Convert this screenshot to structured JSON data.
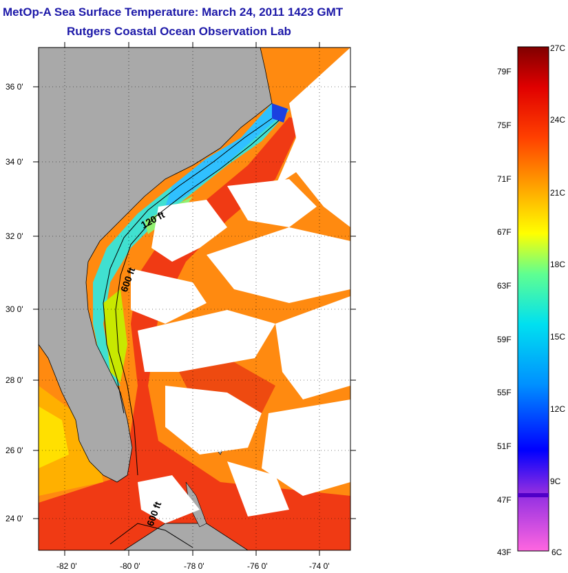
{
  "title": "MetOp-A Sea Surface Temperature:  March 24, 2011 1423 GMT",
  "subtitle": "Rutgers Coastal Ocean Observation Lab",
  "map": {
    "lat_ticks": [
      "36 0'",
      "34 0'",
      "32 0'",
      "30 0'",
      "28 0'",
      "26 0'",
      "24 0'"
    ],
    "lon_ticks": [
      "-82 0'",
      "-80 0'",
      "-78 0'",
      "-76 0'",
      "-74 0'"
    ],
    "contour_labels": [
      "120 ft",
      "600 ft",
      "600 ft"
    ],
    "land_color": "#a9a9a9",
    "cloud_color": "#ffffff"
  },
  "colorbar": {
    "fahrenheit_labels": [
      "79F",
      "75F",
      "71F",
      "67F",
      "63F",
      "59F",
      "55F",
      "51F",
      "47F",
      "43F"
    ],
    "celsius_labels": [
      "27C",
      "24C",
      "21C",
      "18C",
      "15C",
      "12C",
      "9C",
      "6C"
    ],
    "range_c": [
      6,
      27
    ],
    "range_f": [
      43,
      81
    ]
  }
}
